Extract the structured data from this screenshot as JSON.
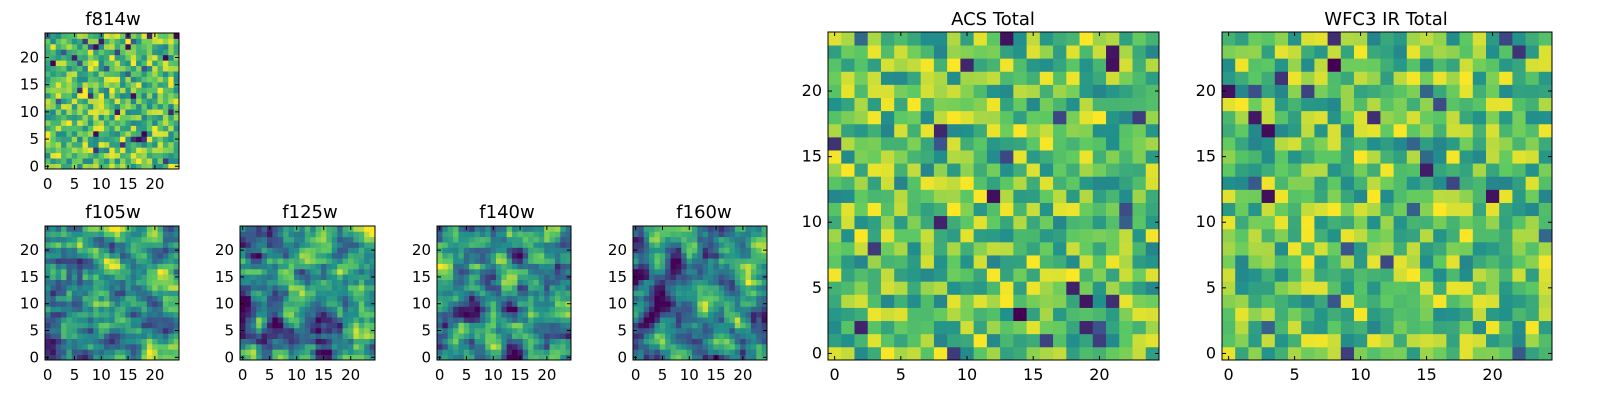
{
  "figure": {
    "background": "#ffffff",
    "colormap": [
      "#440154",
      "#3b528b",
      "#21918c",
      "#5ec962",
      "#fde725"
    ]
  },
  "chart_data": [
    {
      "type": "heatmap",
      "title": "f814w",
      "grid": false,
      "xlim": [
        -0.5,
        24.5
      ],
      "ylim": [
        -0.5,
        24.5
      ],
      "xticks": [
        0,
        5,
        10,
        15,
        20
      ],
      "yticks": [
        0,
        5,
        10,
        15,
        20
      ],
      "xticklabels": [
        "0",
        "5",
        "10",
        "15",
        "20"
      ],
      "yticklabels": [
        "0",
        "5",
        "10",
        "15",
        "20"
      ],
      "shape": [
        25,
        25
      ],
      "value_range": [
        0,
        1
      ],
      "pattern": "uniform"
    },
    {
      "type": "heatmap",
      "title": "f105w",
      "grid": false,
      "xlim": [
        -0.5,
        24.5
      ],
      "ylim": [
        -0.5,
        24.5
      ],
      "xticks": [
        0,
        5,
        10,
        15,
        20
      ],
      "yticks": [
        0,
        5,
        10,
        15,
        20
      ],
      "xticklabels": [
        "0",
        "5",
        "10",
        "15",
        "20"
      ],
      "yticklabels": [
        "0",
        "5",
        "10",
        "15",
        "20"
      ],
      "shape": [
        25,
        25
      ],
      "value_range": [
        0,
        1
      ],
      "pattern": "smooth"
    },
    {
      "type": "heatmap",
      "title": "f125w",
      "grid": false,
      "xlim": [
        -0.5,
        24.5
      ],
      "ylim": [
        -0.5,
        24.5
      ],
      "xticks": [
        0,
        5,
        10,
        15,
        20
      ],
      "yticks": [
        0,
        5,
        10,
        15,
        20
      ],
      "xticklabels": [
        "0",
        "5",
        "10",
        "15",
        "20"
      ],
      "yticklabels": [
        "0",
        "5",
        "10",
        "15",
        "20"
      ],
      "shape": [
        25,
        25
      ],
      "value_range": [
        0,
        1
      ],
      "pattern": "smooth"
    },
    {
      "type": "heatmap",
      "title": "f140w",
      "grid": false,
      "xlim": [
        -0.5,
        24.5
      ],
      "ylim": [
        -0.5,
        24.5
      ],
      "xticks": [
        0,
        5,
        10,
        15,
        20
      ],
      "yticks": [
        0,
        5,
        10,
        15,
        20
      ],
      "xticklabels": [
        "0",
        "5",
        "10",
        "15",
        "20"
      ],
      "yticklabels": [
        "0",
        "5",
        "10",
        "15",
        "20"
      ],
      "shape": [
        25,
        25
      ],
      "value_range": [
        0,
        1
      ],
      "pattern": "smooth"
    },
    {
      "type": "heatmap",
      "title": "f160w",
      "grid": false,
      "xlim": [
        -0.5,
        24.5
      ],
      "ylim": [
        -0.5,
        24.5
      ],
      "xticks": [
        0,
        5,
        10,
        15,
        20
      ],
      "yticks": [
        0,
        5,
        10,
        15,
        20
      ],
      "xticklabels": [
        "0",
        "5",
        "10",
        "15",
        "20"
      ],
      "yticklabels": [
        "0",
        "5",
        "10",
        "15",
        "20"
      ],
      "shape": [
        25,
        25
      ],
      "value_range": [
        0,
        1
      ],
      "pattern": "smooth"
    },
    {
      "type": "heatmap",
      "title": "ACS Total",
      "grid": false,
      "xlim": [
        -0.5,
        24.5
      ],
      "ylim": [
        -0.5,
        24.5
      ],
      "xticks": [
        0,
        5,
        10,
        15,
        20
      ],
      "yticks": [
        0,
        5,
        10,
        15,
        20
      ],
      "xticklabels": [
        "0",
        "5",
        "10",
        "15",
        "20"
      ],
      "yticklabels": [
        "0",
        "5",
        "10",
        "15",
        "20"
      ],
      "shape": [
        25,
        25
      ],
      "value_range": [
        0,
        1
      ],
      "pattern": "uniform"
    },
    {
      "type": "heatmap",
      "title": "WFC3 IR Total",
      "grid": false,
      "xlim": [
        -0.5,
        24.5
      ],
      "ylim": [
        -0.5,
        24.5
      ],
      "xticks": [
        0,
        5,
        10,
        15,
        20
      ],
      "yticks": [
        0,
        5,
        10,
        15,
        20
      ],
      "xticklabels": [
        "0",
        "5",
        "10",
        "15",
        "20"
      ],
      "yticklabels": [
        "0",
        "5",
        "10",
        "15",
        "20"
      ],
      "shape": [
        25,
        25
      ],
      "value_range": [
        0,
        1
      ],
      "pattern": "uniform"
    }
  ]
}
